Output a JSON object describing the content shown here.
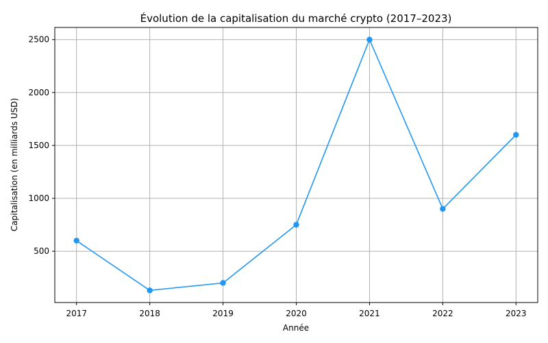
{
  "chart_data": {
    "type": "line",
    "title": "Évolution de la capitalisation du marché crypto (2017–2023)",
    "xlabel": "Année",
    "ylabel": "Capitalisation (en milliards USD)",
    "x": [
      "2017",
      "2018",
      "2019",
      "2020",
      "2021",
      "2022",
      "2023"
    ],
    "series": [
      {
        "values": [
          600,
          130,
          200,
          750,
          2500,
          900,
          1600
        ],
        "color": "#2196f3"
      }
    ],
    "yticks": [
      500,
      1000,
      1500,
      2000,
      2500
    ],
    "ylim": [
      15,
      2615
    ],
    "grid": true,
    "marker": "circle"
  }
}
